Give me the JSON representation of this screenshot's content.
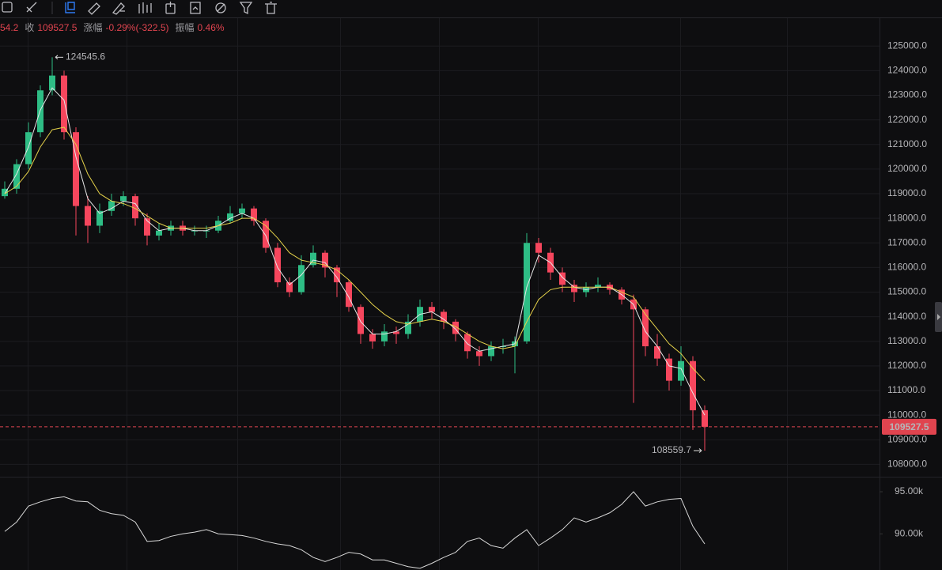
{
  "info_bar": [
    {
      "value": "54.2"
    },
    {
      "label": "收",
      "value": "109527.5"
    },
    {
      "label": "涨幅",
      "value": "-0.29%(-322.5)"
    },
    {
      "label": "振幅",
      "value": "0.46%"
    }
  ],
  "chart_data": {
    "type": "candlestick",
    "up_color": "#2ebd85",
    "down_color": "#f6465d",
    "open": [
      118900,
      119200,
      120200,
      121500,
      123200,
      123800,
      121500,
      118500,
      117700,
      118300,
      118700,
      118900,
      118000,
      117300,
      117500,
      117700,
      117500,
      117500,
      117500,
      117900,
      118200,
      118400,
      117900,
      116800,
      115400,
      115000,
      116100,
      116600,
      116000,
      115400,
      114400,
      113300,
      113000,
      113400,
      113300,
      113800,
      114400,
      114200,
      113800,
      113300,
      112600,
      112400,
      112800,
      112800,
      113000,
      117000,
      116600,
      115800,
      115300,
      115000,
      115200,
      115300,
      115100,
      114700,
      114300,
      112800,
      112300,
      111400,
      112200,
      110200
    ],
    "high": [
      119500,
      120400,
      121900,
      123400,
      124545.6,
      124000,
      121700,
      118900,
      118600,
      119000,
      119100,
      119000,
      118200,
      117800,
      117900,
      117900,
      117700,
      117700,
      118100,
      118500,
      118600,
      118500,
      118000,
      117000,
      115600,
      116500,
      116900,
      116700,
      116100,
      115500,
      114500,
      113500,
      113700,
      113600,
      114100,
      114700,
      114600,
      114300,
      113900,
      113400,
      112800,
      113000,
      113100,
      113200,
      117400,
      117200,
      116800,
      116000,
      115500,
      115400,
      115600,
      115400,
      115200,
      114900,
      114400,
      113300,
      112500,
      112800,
      112400,
      110400
    ],
    "low": [
      118800,
      119000,
      120000,
      121300,
      123000,
      121200,
      117300,
      117000,
      117400,
      118100,
      118500,
      117700,
      116900,
      117100,
      117300,
      117300,
      117300,
      117200,
      117400,
      117800,
      118000,
      117700,
      116600,
      115200,
      114800,
      114900,
      116000,
      115600,
      114800,
      114200,
      112900,
      112700,
      112800,
      112900,
      113100,
      113600,
      113900,
      113500,
      113000,
      112300,
      112000,
      112200,
      112500,
      111700,
      112900,
      116200,
      115500,
      115000,
      114600,
      114800,
      115000,
      114900,
      114500,
      110500,
      112400,
      112000,
      111000,
      111200,
      109400,
      108559.7
    ],
    "close": [
      119200,
      120200,
      121500,
      123200,
      123800,
      121500,
      118500,
      117700,
      118300,
      118700,
      118900,
      118000,
      117300,
      117500,
      117700,
      117500,
      117500,
      117500,
      117900,
      118200,
      118400,
      117900,
      116800,
      115400,
      115000,
      116100,
      116600,
      116000,
      115400,
      114400,
      113300,
      113000,
      113400,
      113300,
      113800,
      114400,
      114200,
      113800,
      113300,
      112600,
      112400,
      112800,
      112800,
      113000,
      117000,
      116600,
      115800,
      115300,
      115000,
      115200,
      115300,
      115100,
      114700,
      114300,
      112800,
      112300,
      111400,
      112200,
      110200,
      109527.5
    ],
    "series": [
      {
        "color": "#e6e6e6",
        "values": [
          119000,
          119800,
          120900,
          122400,
          123300,
          122800,
          120500,
          118800,
          118200,
          118400,
          118700,
          118600,
          117900,
          117500,
          117600,
          117600,
          117500,
          117500,
          117700,
          118000,
          118200,
          118000,
          117300,
          116000,
          115300,
          115700,
          116300,
          116200,
          115600,
          114800,
          113800,
          113300,
          113300,
          113400,
          113700,
          114100,
          114200,
          113900,
          113500,
          112900,
          112600,
          112700,
          112800,
          112900,
          115200,
          116500,
          116200,
          115600,
          115200,
          115100,
          115200,
          115200,
          114900,
          114500,
          113400,
          112800,
          112000,
          111900,
          110900,
          110000
        ]
      },
      {
        "color": "#e3d04a",
        "values": [
          119000,
          119300,
          119900,
          120900,
          121600,
          121700,
          121000,
          119800,
          119000,
          118700,
          118600,
          118400,
          118100,
          117800,
          117600,
          117600,
          117600,
          117600,
          117700,
          117800,
          118000,
          118000,
          117700,
          117200,
          116600,
          116300,
          116200,
          116100,
          115900,
          115500,
          115000,
          114500,
          114100,
          113800,
          113700,
          113800,
          113900,
          113800,
          113600,
          113300,
          113000,
          112800,
          112700,
          112800,
          113800,
          114700,
          115100,
          115200,
          115200,
          115200,
          115200,
          115200,
          115000,
          114800,
          114100,
          113500,
          112900,
          112500,
          111900,
          111400
        ]
      }
    ],
    "ylim": [
      107500,
      126100
    ],
    "yticks": [
      {
        "value": 108000,
        "label": "108000.0"
      },
      {
        "value": 109000,
        "label": "109000.0"
      },
      {
        "value": 110000,
        "label": "110000.0"
      },
      {
        "value": 111000,
        "label": "111000.0"
      },
      {
        "value": 112000,
        "label": "112000.0"
      },
      {
        "value": 113000,
        "label": "113000.0"
      },
      {
        "value": 114000,
        "label": "114000.0"
      },
      {
        "value": 115000,
        "label": "115000.0"
      },
      {
        "value": 116000,
        "label": "116000.0"
      },
      {
        "value": 117000,
        "label": "117000.0"
      },
      {
        "value": 118000,
        "label": "118000.0"
      },
      {
        "value": 119000,
        "label": "119000.0"
      },
      {
        "value": 120000,
        "label": "120000.0"
      },
      {
        "value": 121000,
        "label": "121000.0"
      },
      {
        "value": 122000,
        "label": "122000.0"
      },
      {
        "value": 123000,
        "label": "123000.0"
      },
      {
        "value": 124000,
        "label": "124000.0"
      },
      {
        "value": 125000,
        "label": "125000.0"
      }
    ],
    "grid": true,
    "high_marker": 124545.6,
    "low_marker": 108559.7,
    "last_price": 109527.5,
    "last_price_color": "#e0444f",
    "indicator": {
      "color": "#d8d8d8",
      "values": [
        90280,
        91400,
        93300,
        93800,
        94200,
        94400,
        93900,
        93800,
        92800,
        92400,
        92200,
        91400,
        89100,
        89200,
        89700,
        90000,
        90200,
        90500,
        90000,
        89900,
        89800,
        89500,
        89100,
        88800,
        88600,
        88100,
        87200,
        86700,
        87200,
        87800,
        87600,
        86900,
        86900,
        86500,
        86100,
        85900,
        86500,
        87200,
        87800,
        89100,
        89500,
        88600,
        88300,
        89500,
        90500,
        88600,
        89500,
        90500,
        91900,
        91400,
        91900,
        92500,
        93500,
        95000,
        93300,
        93800,
        94100,
        94200,
        90900,
        88800
      ],
      "ylim": [
        85700,
        96600
      ],
      "yticks": [
        {
          "value": 90000,
          "label": "90.00k"
        },
        {
          "value": 95000,
          "label": "95.00k"
        }
      ]
    }
  }
}
